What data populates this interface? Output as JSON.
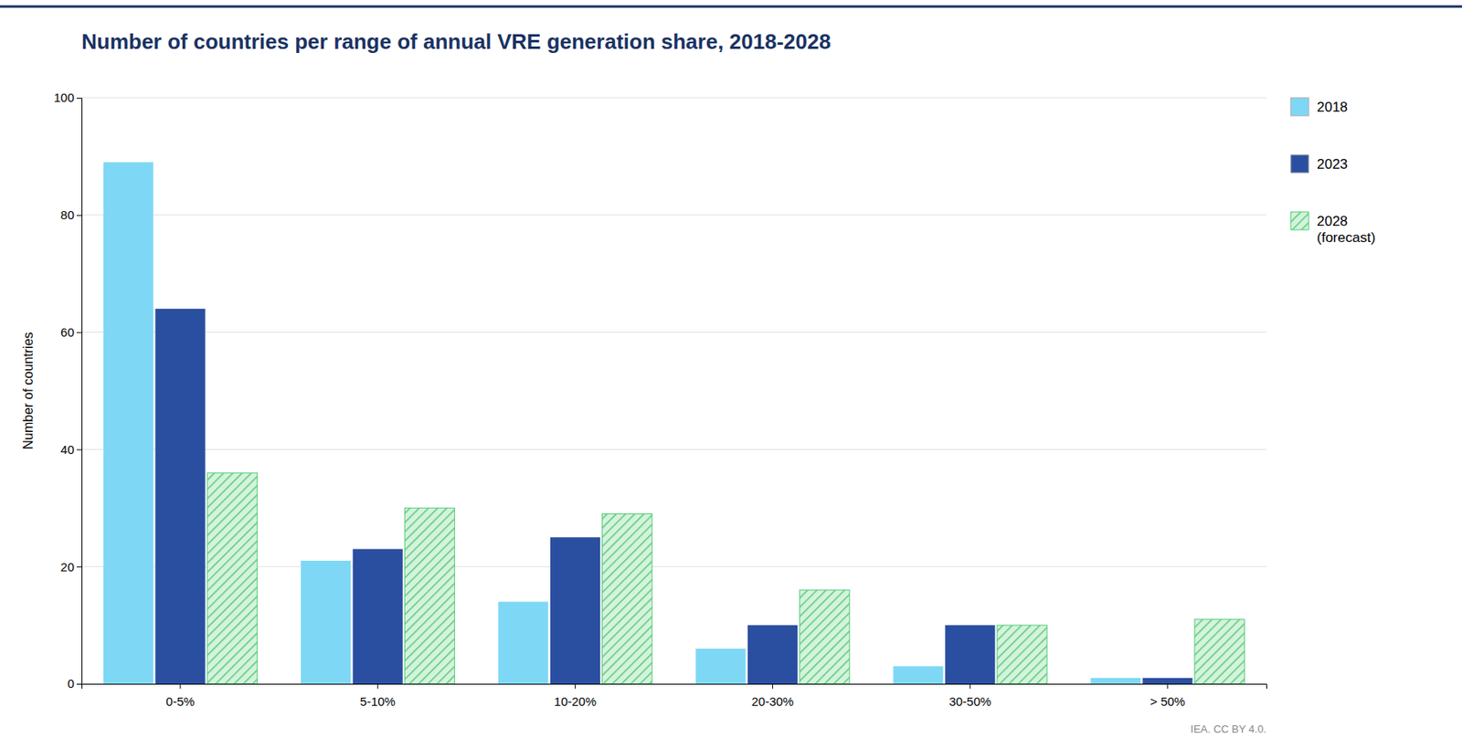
{
  "chart_data": {
    "type": "bar",
    "title": "Number of countries per range of annual VRE generation share, 2018-2028",
    "categories": [
      "0-5%",
      "5-10%",
      "10-20%",
      "20-30%",
      "30-50%",
      "> 50%"
    ],
    "series": [
      {
        "name": "2018",
        "color": "#7ED8F5",
        "values": [
          89,
          21,
          14,
          6,
          3,
          1
        ]
      },
      {
        "name": "2023",
        "color": "#2B4FA0",
        "values": [
          64,
          23,
          25,
          10,
          10,
          1
        ]
      },
      {
        "name": "2028\n(forecast)",
        "color": "#55CC77",
        "values": [
          36,
          30,
          29,
          16,
          10,
          11
        ]
      }
    ],
    "ylabel": "Number of countries",
    "ylim": [
      0,
      100
    ],
    "yticks": [
      0,
      20,
      40,
      60,
      80,
      100
    ],
    "grid": true,
    "legend": "right",
    "annotations": [
      "IEA. CC BY 4.0."
    ]
  }
}
